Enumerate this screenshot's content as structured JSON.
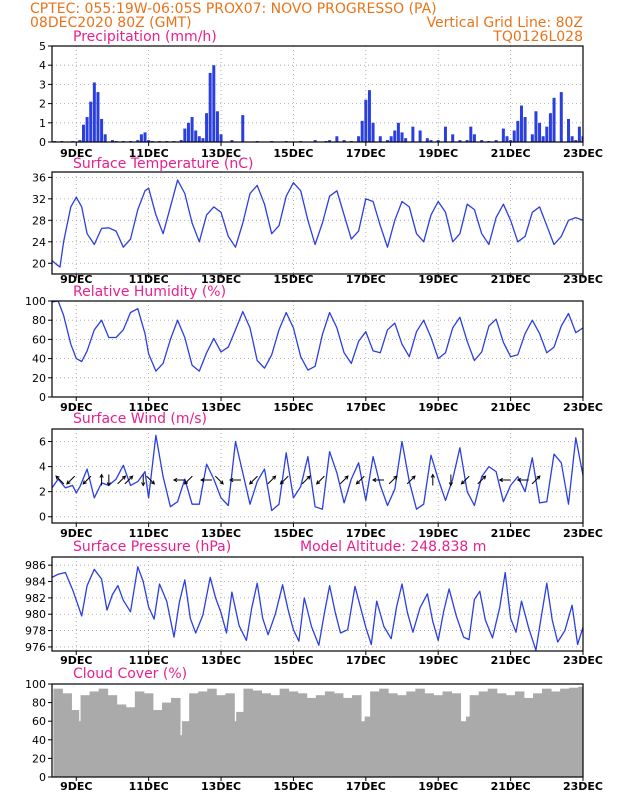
{
  "header": {
    "line1_left": "CPTEC:  055:19W-06:05S  PROX07: NOVO PROGRESSO (PA)",
    "line2_left": "08DEC2020 80Z (GMT)",
    "line2_right": "Vertical Grid Line: 80Z",
    "line3_right": "TQ0126L028"
  },
  "colors": {
    "header": "#e8741a",
    "panel_title": "#ea1f8e",
    "series": "#2b3fe0",
    "cloud": "#aaaaaa",
    "arrow": "#000000"
  },
  "chart_data": [
    {
      "type": "bar",
      "title": "Precipitation (mm/h)",
      "ylim": [
        0,
        5
      ],
      "yticks": [
        0,
        1,
        2,
        3,
        4,
        5
      ],
      "xlim": [
        8.33,
        23.0
      ],
      "xtick_values": [
        9,
        11,
        13,
        15,
        17,
        19,
        21,
        23
      ],
      "xtick_labels": [
        "9DEC",
        "11DEC",
        "13DEC",
        "15DEC",
        "17DEC",
        "19DEC",
        "21DEC",
        "23DEC"
      ],
      "grid": true,
      "x": [
        8.4,
        8.6,
        8.9,
        9.1,
        9.2,
        9.3,
        9.4,
        9.5,
        9.6,
        9.7,
        9.8,
        10.0,
        10.1,
        10.3,
        10.5,
        10.7,
        10.8,
        10.9,
        11.0,
        11.1,
        11.3,
        11.5,
        11.7,
        11.9,
        12.0,
        12.1,
        12.2,
        12.3,
        12.4,
        12.5,
        12.6,
        12.7,
        12.8,
        12.9,
        13.0,
        13.3,
        13.6,
        14.0,
        14.4,
        14.8,
        15.2,
        15.6,
        15.9,
        16.0,
        16.2,
        16.4,
        16.6,
        16.8,
        16.9,
        17.0,
        17.1,
        17.2,
        17.4,
        17.6,
        17.7,
        17.8,
        17.9,
        18.0,
        18.1,
        18.3,
        18.5,
        18.7,
        18.8,
        19.0,
        19.2,
        19.4,
        19.6,
        19.8,
        19.9,
        20.0,
        20.2,
        20.4,
        20.6,
        20.8,
        20.9,
        21.0,
        21.1,
        21.2,
        21.3,
        21.4,
        21.6,
        21.7,
        21.8,
        21.9,
        22.0,
        22.1,
        22.2,
        22.4,
        22.6,
        22.7,
        22.8,
        22.9,
        23.0
      ],
      "values": [
        0.05,
        0.05,
        0.05,
        0.1,
        0.9,
        1.3,
        2.1,
        3.1,
        2.6,
        1.2,
        0.4,
        0.1,
        0.05,
        0.05,
        0.05,
        0.1,
        0.4,
        0.5,
        0.1,
        0.05,
        0.05,
        0.05,
        0.05,
        0.1,
        0.7,
        1.0,
        1.3,
        0.6,
        0.3,
        0.2,
        1.5,
        3.6,
        4.0,
        1.6,
        0.4,
        0.1,
        1.4,
        0.05,
        0.05,
        0.05,
        0.05,
        0.1,
        0.05,
        0.1,
        0.3,
        0.1,
        0.05,
        0.3,
        1.1,
        2.2,
        2.7,
        1.0,
        0.3,
        0.1,
        0.3,
        0.6,
        1.0,
        0.5,
        0.2,
        0.8,
        0.6,
        0.2,
        0.1,
        0.1,
        0.8,
        0.4,
        0.1,
        0.1,
        0.8,
        0.4,
        0.1,
        0.05,
        0.1,
        0.7,
        0.3,
        0.1,
        0.6,
        1.1,
        1.9,
        1.3,
        0.4,
        1.6,
        1.0,
        0.3,
        0.8,
        1.5,
        2.3,
        2.6,
        1.2,
        0.3,
        0.1,
        0.8,
        0.3
      ]
    },
    {
      "type": "line",
      "title": "Surface Temperature (nC)",
      "ylim": [
        18,
        37
      ],
      "yticks": [
        20,
        24,
        28,
        32,
        36
      ],
      "xlim": [
        8.33,
        23.0
      ],
      "xtick_values": [
        9,
        11,
        13,
        15,
        17,
        19,
        21,
        23
      ],
      "xtick_labels": [
        "9DEC",
        "11DEC",
        "13DEC",
        "15DEC",
        "17DEC",
        "19DEC",
        "21DEC",
        "23DEC"
      ],
      "grid": true,
      "x": [
        8.33,
        8.45,
        8.55,
        8.65,
        8.85,
        9.0,
        9.15,
        9.3,
        9.5,
        9.7,
        9.9,
        10.1,
        10.3,
        10.5,
        10.7,
        10.9,
        11.0,
        11.2,
        11.4,
        11.6,
        11.8,
        12.0,
        12.2,
        12.4,
        12.6,
        12.8,
        13.0,
        13.2,
        13.4,
        13.6,
        13.8,
        14.0,
        14.2,
        14.4,
        14.6,
        14.8,
        15.0,
        15.2,
        15.4,
        15.6,
        15.8,
        16.0,
        16.2,
        16.4,
        16.6,
        16.8,
        17.0,
        17.2,
        17.4,
        17.6,
        17.8,
        18.0,
        18.2,
        18.4,
        18.6,
        18.8,
        19.0,
        19.2,
        19.4,
        19.6,
        19.8,
        20.0,
        20.2,
        20.4,
        20.6,
        20.8,
        21.0,
        21.2,
        21.4,
        21.6,
        21.8,
        22.0,
        22.2,
        22.4,
        22.6,
        22.8,
        23.0
      ],
      "values": [
        20.5,
        19.8,
        19.3,
        24.0,
        30.5,
        32.3,
        30.5,
        25.5,
        23.5,
        26.5,
        26.6,
        26.0,
        23.0,
        24.5,
        30.0,
        33.5,
        34.0,
        29.0,
        25.5,
        30.5,
        35.5,
        33.0,
        27.5,
        24.0,
        29.0,
        30.5,
        29.5,
        25.0,
        23.0,
        27.5,
        33.0,
        34.5,
        31.0,
        25.5,
        27.0,
        32.5,
        35.0,
        33.5,
        28.0,
        23.5,
        27.5,
        32.5,
        33.5,
        29.0,
        24.5,
        26.0,
        32.0,
        31.5,
        27.0,
        23.0,
        28.0,
        31.5,
        30.5,
        25.5,
        24.0,
        29.0,
        31.5,
        29.5,
        24.0,
        25.5,
        31.0,
        30.0,
        25.5,
        23.5,
        28.5,
        31.0,
        28.0,
        24.0,
        25.0,
        29.5,
        30.5,
        27.0,
        23.5,
        25.0,
        28.0,
        28.5,
        28.0
      ]
    },
    {
      "type": "line",
      "title": "Relative Humidity (%)",
      "ylim": [
        0,
        100
      ],
      "yticks": [
        0,
        20,
        40,
        60,
        80,
        100
      ],
      "xlim": [
        8.33,
        23.0
      ],
      "xtick_values": [
        9,
        11,
        13,
        15,
        17,
        19,
        21,
        23
      ],
      "xtick_labels": [
        "9DEC",
        "11DEC",
        "13DEC",
        "15DEC",
        "17DEC",
        "19DEC",
        "21DEC",
        "23DEC"
      ],
      "grid": true,
      "x": [
        8.33,
        8.5,
        8.65,
        8.85,
        9.0,
        9.15,
        9.3,
        9.5,
        9.7,
        9.9,
        10.1,
        10.3,
        10.5,
        10.7,
        10.9,
        11.0,
        11.2,
        11.4,
        11.6,
        11.8,
        12.0,
        12.2,
        12.4,
        12.6,
        12.8,
        13.0,
        13.2,
        13.4,
        13.6,
        13.8,
        14.0,
        14.2,
        14.4,
        14.6,
        14.8,
        15.0,
        15.2,
        15.4,
        15.6,
        15.8,
        16.0,
        16.2,
        16.4,
        16.6,
        16.8,
        17.0,
        17.2,
        17.4,
        17.6,
        17.8,
        18.0,
        18.2,
        18.4,
        18.6,
        18.8,
        19.0,
        19.2,
        19.4,
        19.6,
        19.8,
        20.0,
        20.2,
        20.4,
        20.6,
        20.8,
        21.0,
        21.2,
        21.4,
        21.6,
        21.8,
        22.0,
        22.2,
        22.4,
        22.6,
        22.8,
        23.0
      ],
      "values": [
        99,
        100,
        85,
        55,
        40,
        37,
        48,
        70,
        80,
        62,
        62,
        70,
        88,
        92,
        66,
        45,
        27,
        35,
        60,
        80,
        62,
        33,
        27,
        46,
        61,
        47,
        52,
        70,
        89,
        72,
        38,
        30,
        44,
        70,
        88,
        72,
        42,
        28,
        32,
        65,
        88,
        72,
        46,
        35,
        58,
        68,
        48,
        46,
        70,
        77,
        55,
        42,
        68,
        80,
        62,
        40,
        46,
        72,
        83,
        58,
        38,
        47,
        74,
        81,
        57,
        42,
        44,
        66,
        80,
        66,
        46,
        52,
        74,
        87,
        67,
        72
      ]
    },
    {
      "type": "line",
      "title": "Surface Wind (m/s)",
      "ylim": [
        -0.5,
        7
      ],
      "yticks": [
        0,
        2,
        4,
        6
      ],
      "xlim": [
        8.33,
        23.0
      ],
      "xtick_values": [
        9,
        11,
        13,
        15,
        17,
        19,
        21,
        23
      ],
      "xtick_labels": [
        "9DEC",
        "11DEC",
        "13DEC",
        "15DEC",
        "17DEC",
        "19DEC",
        "21DEC",
        "23DEC"
      ],
      "grid": true,
      "x": [
        8.33,
        8.5,
        8.7,
        8.9,
        9.0,
        9.1,
        9.3,
        9.5,
        9.7,
        9.9,
        10.1,
        10.3,
        10.5,
        10.7,
        10.9,
        11.0,
        11.2,
        11.4,
        11.6,
        11.8,
        12.0,
        12.2,
        12.4,
        12.6,
        12.8,
        13.0,
        13.2,
        13.4,
        13.6,
        13.8,
        14.0,
        14.2,
        14.4,
        14.6,
        14.8,
        15.0,
        15.2,
        15.4,
        15.6,
        15.8,
        16.0,
        16.2,
        16.4,
        16.6,
        16.8,
        17.0,
        17.2,
        17.4,
        17.6,
        17.8,
        18.0,
        18.2,
        18.4,
        18.6,
        18.8,
        19.0,
        19.2,
        19.4,
        19.6,
        19.8,
        20.0,
        20.2,
        20.4,
        20.6,
        20.8,
        21.0,
        21.2,
        21.4,
        21.6,
        21.8,
        22.0,
        22.2,
        22.4,
        22.6,
        22.8,
        23.0
      ],
      "values": [
        2.3,
        3.0,
        2.3,
        2.5,
        1.9,
        2.4,
        3.8,
        1.5,
        2.7,
        2.5,
        3.0,
        4.1,
        2.5,
        2.8,
        3.6,
        1.5,
        6.5,
        3.2,
        0.8,
        1.2,
        3.0,
        1.0,
        1.0,
        4.2,
        3.0,
        1.5,
        0.9,
        6.0,
        3.5,
        1.0,
        2.8,
        3.8,
        0.5,
        1.0,
        5.1,
        1.5,
        2.4,
        4.8,
        0.8,
        0.6,
        5.2,
        3.5,
        1.1,
        3.0,
        4.3,
        1.3,
        4.8,
        2.5,
        0.9,
        2.2,
        6.0,
        2.8,
        0.6,
        1.0,
        4.9,
        3.0,
        1.3,
        3.0,
        5.5,
        2.0,
        0.9,
        3.2,
        4.0,
        3.6,
        1.2,
        2.5,
        3.2,
        2.0,
        4.7,
        1.1,
        1.2,
        5.0,
        4.3,
        1.0,
        6.3,
        3.3
      ],
      "arrows": {
        "x": [
          8.55,
          8.85,
          9.3,
          9.7,
          9.9,
          10.25,
          10.45,
          10.85,
          11.05,
          11.85,
          12.1,
          12.6,
          12.95,
          13.4,
          13.9,
          14.4,
          14.75,
          15.35,
          15.75,
          16.4,
          16.85,
          17.35,
          17.75,
          18.25,
          18.85,
          19.35,
          19.75,
          20.2,
          20.85,
          21.35,
          21.7
        ],
        "dir_deg": [
          135,
          225,
          225,
          90,
          270,
          45,
          45,
          270,
          315,
          180,
          225,
          180,
          315,
          180,
          225,
          45,
          225,
          45,
          225,
          45,
          225,
          180,
          45,
          45,
          90,
          270,
          225,
          45,
          180,
          180,
          45
        ]
      }
    },
    {
      "type": "line",
      "title": "Surface Pressure (hPa)",
      "annotation": "Model Altitude: 248.838 m",
      "ylim": [
        975.5,
        987
      ],
      "yticks": [
        976,
        978,
        980,
        982,
        984,
        986
      ],
      "xlim": [
        8.33,
        23.0
      ],
      "xtick_values": [
        9,
        11,
        13,
        15,
        17,
        19,
        21,
        23
      ],
      "xtick_labels": [
        "9DEC",
        "11DEC",
        "13DEC",
        "15DEC",
        "17DEC",
        "19DEC",
        "21DEC",
        "23DEC"
      ],
      "grid": true,
      "x": [
        8.33,
        8.5,
        8.7,
        8.9,
        9.0,
        9.15,
        9.3,
        9.5,
        9.7,
        9.85,
        10.0,
        10.15,
        10.3,
        10.5,
        10.7,
        10.85,
        11.0,
        11.15,
        11.3,
        11.5,
        11.7,
        11.85,
        12.0,
        12.15,
        12.3,
        12.5,
        12.7,
        12.85,
        13.0,
        13.15,
        13.3,
        13.5,
        13.7,
        13.85,
        14.0,
        14.15,
        14.3,
        14.5,
        14.7,
        14.85,
        15.0,
        15.15,
        15.3,
        15.5,
        15.7,
        15.85,
        16.0,
        16.15,
        16.3,
        16.5,
        16.7,
        16.85,
        17.0,
        17.15,
        17.3,
        17.5,
        17.7,
        17.85,
        18.0,
        18.15,
        18.3,
        18.5,
        18.7,
        18.85,
        19.0,
        19.15,
        19.3,
        19.5,
        19.7,
        19.85,
        20.0,
        20.15,
        20.3,
        20.5,
        20.7,
        20.85,
        21.0,
        21.15,
        21.3,
        21.5,
        21.7,
        21.85,
        22.0,
        22.15,
        22.3,
        22.5,
        22.7,
        22.85,
        23.0
      ],
      "values": [
        984.5,
        984.9,
        985.1,
        983.0,
        981.7,
        979.8,
        983.5,
        985.5,
        984.3,
        980.5,
        982.4,
        983.5,
        981.7,
        980.3,
        985.8,
        984.0,
        980.9,
        979.4,
        983.7,
        981.6,
        977.2,
        981.5,
        984.2,
        979.5,
        977.7,
        979.9,
        984.5,
        982.0,
        980.2,
        977.7,
        982.7,
        978.6,
        976.8,
        980.8,
        983.8,
        979.5,
        977.5,
        980.0,
        983.6,
        980.6,
        978.1,
        976.7,
        982.0,
        978.5,
        976.2,
        980.0,
        983.5,
        980.3,
        977.7,
        978.1,
        983.4,
        980.9,
        978.4,
        976.3,
        981.6,
        978.5,
        977.0,
        980.9,
        983.7,
        980.2,
        977.8,
        980.8,
        982.5,
        979.1,
        976.8,
        980.3,
        983.1,
        979.8,
        977.2,
        976.9,
        981.8,
        982.8,
        979.3,
        977.1,
        980.8,
        985.1,
        979.5,
        977.8,
        981.6,
        978.3,
        975.6,
        979.8,
        983.8,
        979.3,
        976.6,
        978.0,
        981.1,
        976.3,
        978.4
      ]
    },
    {
      "type": "bar",
      "title": "Cloud Cover (%)",
      "ylim": [
        0,
        100
      ],
      "yticks": [
        0,
        20,
        40,
        60,
        80,
        100
      ],
      "xlim": [
        8.33,
        23.0
      ],
      "xtick_values": [
        9,
        11,
        13,
        15,
        17,
        19,
        21,
        23
      ],
      "xtick_labels": [
        "9DEC",
        "11DEC",
        "13DEC",
        "15DEC",
        "17DEC",
        "19DEC",
        "21DEC",
        "23DEC"
      ],
      "grid": false,
      "x": [
        8.5,
        8.75,
        8.95,
        9.0,
        9.05,
        9.25,
        9.5,
        9.75,
        10.0,
        10.25,
        10.5,
        10.75,
        11.0,
        11.25,
        11.5,
        11.75,
        11.95,
        12.0,
        12.05,
        12.25,
        12.5,
        12.75,
        13.0,
        13.25,
        13.45,
        13.5,
        13.55,
        13.75,
        14.0,
        14.25,
        14.5,
        14.75,
        15.0,
        15.25,
        15.5,
        15.75,
        16.0,
        16.25,
        16.5,
        16.75,
        16.9,
        17.0,
        17.1,
        17.25,
        17.5,
        17.75,
        18.0,
        18.25,
        18.5,
        18.75,
        19.0,
        19.25,
        19.5,
        19.7,
        19.8,
        19.9,
        20.0,
        20.25,
        20.5,
        20.75,
        21.0,
        21.25,
        21.5,
        21.75,
        22.0,
        22.25,
        22.5,
        22.75,
        23.0
      ],
      "values": [
        95,
        90,
        72,
        25,
        60,
        88,
        92,
        95,
        88,
        78,
        75,
        92,
        90,
        72,
        80,
        85,
        45,
        20,
        60,
        90,
        92,
        95,
        88,
        90,
        60,
        0,
        70,
        95,
        93,
        90,
        88,
        95,
        92,
        90,
        85,
        88,
        92,
        90,
        85,
        88,
        60,
        40,
        65,
        92,
        95,
        90,
        88,
        92,
        95,
        90,
        88,
        92,
        90,
        60,
        48,
        65,
        88,
        92,
        95,
        90,
        88,
        92,
        85,
        90,
        95,
        92,
        95,
        96,
        97
      ]
    }
  ]
}
